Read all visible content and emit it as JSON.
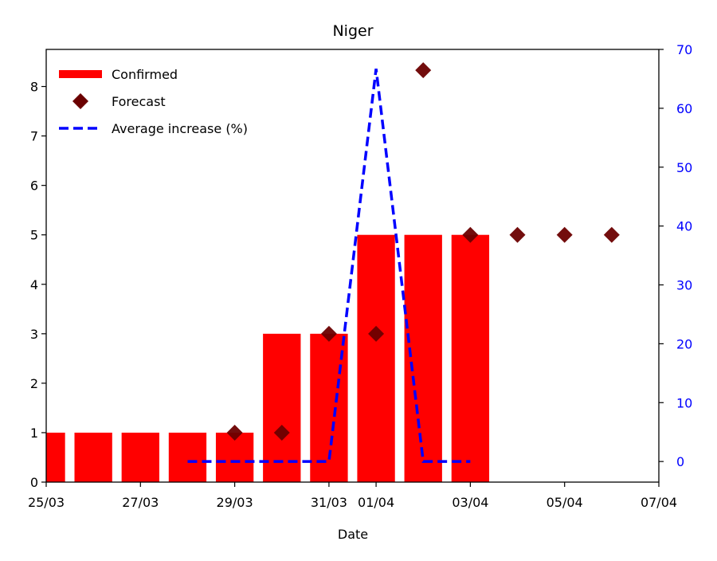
{
  "chart_data": {
    "type": "bar",
    "title": "Niger",
    "xlabel": "Date",
    "ylabel": "",
    "y2label": "",
    "ylim": [
      0,
      8.75
    ],
    "y2lim": [
      -3.5,
      70
    ],
    "xlim": [
      "2020-03-25",
      "2020-04-07"
    ],
    "x_ticks": [
      "25/03",
      "27/03",
      "29/03",
      "31/03",
      "01/04",
      "03/04",
      "05/04",
      "07/04"
    ],
    "x_tick_dates": [
      "2020-03-25",
      "2020-03-27",
      "2020-03-29",
      "2020-03-31",
      "2020-04-01",
      "2020-04-03",
      "2020-04-05",
      "2020-04-07"
    ],
    "y_ticks": [
      0,
      1,
      2,
      3,
      4,
      5,
      6,
      7,
      8
    ],
    "y2_ticks": [
      0,
      10,
      20,
      30,
      40,
      50,
      60,
      70
    ],
    "legend_position": "top-left",
    "grid": false,
    "series": [
      {
        "name": "Confirmed",
        "kind": "bar",
        "axis": "left",
        "color": "#ff0000",
        "x": [
          "2020-03-25",
          "2020-03-26",
          "2020-03-27",
          "2020-03-28",
          "2020-03-29",
          "2020-03-30",
          "2020-03-31",
          "2020-04-01",
          "2020-04-02",
          "2020-04-03"
        ],
        "values": [
          1,
          1,
          1,
          1,
          1,
          3,
          3,
          5,
          5,
          5
        ]
      },
      {
        "name": "Forecast",
        "kind": "scatter",
        "axis": "left",
        "color": "#6b0000",
        "marker": "diamond",
        "x": [
          "2020-03-29",
          "2020-03-30",
          "2020-03-31",
          "2020-04-01",
          "2020-04-02",
          "2020-04-03",
          "2020-04-04",
          "2020-04-05",
          "2020-04-06"
        ],
        "values": [
          1,
          1,
          3,
          3,
          8.33,
          5,
          5,
          5,
          5
        ]
      },
      {
        "name": "Average increase (%)",
        "kind": "line",
        "axis": "right",
        "color": "#0000ff",
        "linestyle": "dashed",
        "x": [
          "2020-03-28",
          "2020-03-29",
          "2020-03-30",
          "2020-03-31",
          "2020-04-01",
          "2020-04-02",
          "2020-04-03"
        ],
        "values": [
          0,
          0,
          0,
          0,
          66.7,
          0,
          0
        ]
      }
    ]
  }
}
